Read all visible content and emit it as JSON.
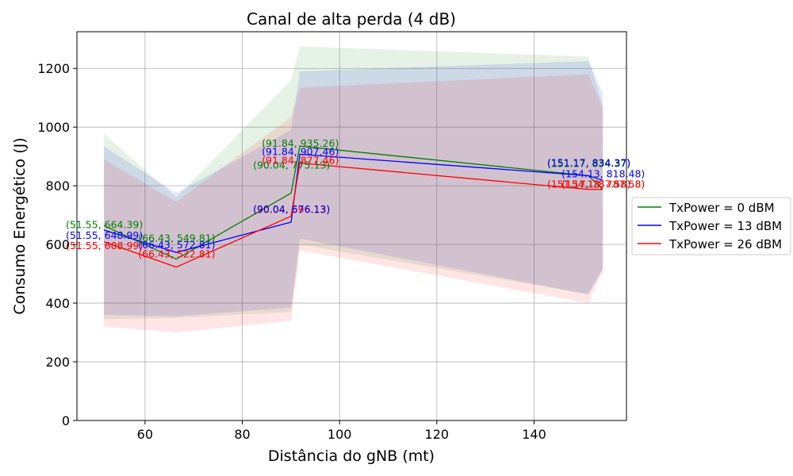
{
  "chart_data": {
    "type": "line",
    "title": "Canal de alta perda (4 dB)",
    "xlabel": "Distância do gNB (mt)",
    "ylabel": "Consumo Energético (J)",
    "xlim": [
      46,
      159
    ],
    "ylim": [
      0,
      1325
    ],
    "xticks": [
      60,
      80,
      100,
      120,
      140
    ],
    "yticks": [
      0,
      200,
      400,
      600,
      800,
      1000,
      1200
    ],
    "grid": true,
    "legend_position": "center-right outside",
    "series": [
      {
        "name": "TxPower = 0 dBM",
        "color": "#008000",
        "x": [
          51.55,
          66.43,
          90.04,
          91.84,
          151.17,
          154.13
        ],
        "y": [
          664.39,
          549.81,
          775.13,
          935.26,
          834.37,
          787.58
        ],
        "lower": [
          345,
          350,
          370,
          600,
          430,
          520
        ],
        "upper": [
          978,
          760,
          1160,
          1275,
          1240,
          1070
        ]
      },
      {
        "name": "TxPower = 13 dBM",
        "color": "#0000ff",
        "x": [
          51.55,
          66.43,
          90.04,
          91.84,
          151.17,
          154.13
        ],
        "y": [
          648.99,
          572.81,
          676.13,
          907.46,
          834.37,
          818.48
        ],
        "lower": [
          360,
          355,
          385,
          620,
          430,
          515
        ],
        "upper": [
          935,
          775,
          990,
          1190,
          1225,
          1115
        ]
      },
      {
        "name": "TxPower = 26 dBM",
        "color": "#ff0000",
        "x": [
          51.55,
          66.43,
          90.04,
          91.84,
          151.17,
          154.13
        ],
        "y": [
          608.99,
          522.81,
          696.13,
          877.46,
          787.58,
          787.58
        ],
        "lower": [
          320,
          300,
          340,
          580,
          400,
          510
        ],
        "upper": [
          890,
          745,
          1035,
          1135,
          1180,
          1065
        ]
      }
    ],
    "annotations": [
      {
        "text": "(51.55, 664.39)",
        "x": 51.55,
        "y": 664.39,
        "color": "#008000",
        "dx": -48,
        "dy": 3
      },
      {
        "text": "(51.55, 648.99)",
        "x": 51.55,
        "y": 648.99,
        "color": "#0000ff",
        "dx": -48,
        "dy": 11
      },
      {
        "text": "(51.55, 608.99)",
        "x": 51.55,
        "y": 608.99,
        "color": "#ff0000",
        "dx": -48,
        "dy": 9
      },
      {
        "text": "(66.43, 572.81)",
        "x": 66.43,
        "y": 572.81,
        "color": "#0000ff",
        "dx": -48,
        "dy": -5
      },
      {
        "text": "(66.43, 549.81)",
        "x": 66.43,
        "y": 549.81,
        "color": "#008000",
        "dx": -48,
        "dy": -22
      },
      {
        "text": "(66.43, 522.81)",
        "x": 66.43,
        "y": 522.81,
        "color": "#ff0000",
        "dx": -48,
        "dy": -12
      },
      {
        "text": "(90.04, 775.13)",
        "x": 90.04,
        "y": 775.13,
        "color": "#008000",
        "dx": -48,
        "dy": -31
      },
      {
        "text": "(90.04, 696.13)",
        "x": 90.04,
        "y": 696.13,
        "color": "#ff0000",
        "dx": -48,
        "dy": -4
      },
      {
        "text": "(90.04, 676.13)",
        "x": 90.04,
        "y": 676.13,
        "color": "#0000ff",
        "dx": -48,
        "dy": -12
      },
      {
        "text": "(91.84, 935.26)",
        "x": 91.84,
        "y": 935.26,
        "color": "#008000",
        "dx": -48,
        "dy": 1
      },
      {
        "text": "(91.84, 907.46)",
        "x": 91.84,
        "y": 907.46,
        "color": "#0000ff",
        "dx": -48,
        "dy": 1
      },
      {
        "text": "(91.84, 877.46)",
        "x": 91.84,
        "y": 877.46,
        "color": "#ff0000",
        "dx": -48,
        "dy": 1
      },
      {
        "text": "(151.17, 834.37)",
        "x": 151.17,
        "y": 834.37,
        "color": "#008000",
        "dx": -52,
        "dy": -11
      },
      {
        "text": "(151.17, 834.37)",
        "x": 151.17,
        "y": 834.37,
        "color": "#0000ff",
        "dx": -52,
        "dy": -12
      },
      {
        "text": "(154.13, 818.48)",
        "x": 154.13,
        "y": 818.48,
        "color": "#0000ff",
        "dx": -52,
        "dy": -4
      },
      {
        "text": "(151.17, 787.58)",
        "x": 151.17,
        "y": 787.58,
        "color": "#ff0000",
        "dx": -52,
        "dy": -2
      },
      {
        "text": "(154.13, 787.58)",
        "x": 154.13,
        "y": 787.58,
        "color": "#008000",
        "dx": -52,
        "dy": -2
      },
      {
        "text": "(154.13, 787.58)",
        "x": 154.13,
        "y": 787.58,
        "color": "#ff0000",
        "dx": -52,
        "dy": -2
      }
    ]
  }
}
